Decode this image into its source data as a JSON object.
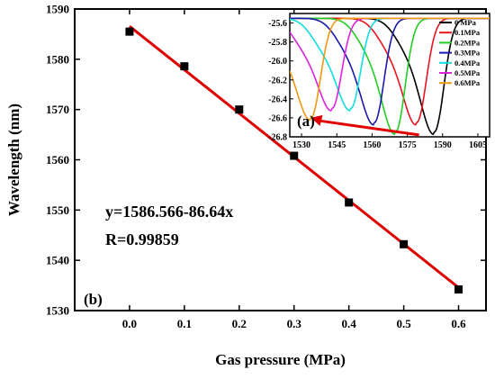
{
  "colors": {
    "fit_line": "#e00000",
    "marker": "#000000"
  },
  "chart_data": [
    {
      "type": "scatter",
      "panel_label": "(b)",
      "xlabel": "Gas pressure (MPa)",
      "ylabel": "Wavelength (nm)",
      "xlim": [
        -0.1,
        0.65
      ],
      "ylim": [
        1530,
        1590
      ],
      "x_ticks": [
        "0.0",
        "0.1",
        "0.2",
        "0.3",
        "0.4",
        "0.5",
        "0.6"
      ],
      "y_ticks": [
        "1530",
        "1540",
        "1550",
        "1560",
        "1570",
        "1580",
        "1590"
      ],
      "grid": false,
      "points": [
        {
          "x": 0.0,
          "y": 1585.5
        },
        {
          "x": 0.1,
          "y": 1578.6
        },
        {
          "x": 0.2,
          "y": 1570.0
        },
        {
          "x": 0.3,
          "y": 1560.8
        },
        {
          "x": 0.4,
          "y": 1551.5
        },
        {
          "x": 0.5,
          "y": 1543.2
        },
        {
          "x": 0.6,
          "y": 1534.2
        }
      ],
      "fit": {
        "intercept": 1586.566,
        "slope": -86.64,
        "x_range": [
          0.0,
          0.6
        ]
      },
      "annotations": [
        "y=1586.566-86.64x",
        "R=0.99859"
      ]
    },
    {
      "type": "line",
      "panel_label": "(a)",
      "xlim": [
        1525,
        1610
      ],
      "ylim": [
        -26.8,
        -25.5
      ],
      "x_ticks": [
        "1530",
        "1545",
        "1560",
        "1575",
        "1590",
        "1605"
      ],
      "y_ticks": [
        "-25.6",
        "-25.8",
        "-26.0",
        "-26.2",
        "-26.4",
        "-26.6",
        "-26.8"
      ],
      "legend_position": "top-right",
      "series": [
        {
          "name": "0 MPa",
          "color": "#000000",
          "dip_x": 1586.5,
          "dip_y": -26.7
        },
        {
          "name": "0.1MPa",
          "color": "#e8141e",
          "dip_x": 1579.0,
          "dip_y": -26.6
        },
        {
          "name": "0.2MPa",
          "color": "#22cc22",
          "dip_x": 1570.0,
          "dip_y": -26.7
        },
        {
          "name": "0.3MPa",
          "color": "#1a1aaa",
          "dip_x": 1561.0,
          "dip_y": -26.6
        },
        {
          "name": "0.4MPa",
          "color": "#11dddd",
          "dip_x": 1551.0,
          "dip_y": -26.45
        },
        {
          "name": "0.5MPa",
          "color": "#dd22dd",
          "dip_x": 1543.0,
          "dip_y": -26.45
        },
        {
          "name": "0.6MPa",
          "color": "#ee9911",
          "dip_x": 1534.0,
          "dip_y": -26.55
        }
      ]
    }
  ]
}
